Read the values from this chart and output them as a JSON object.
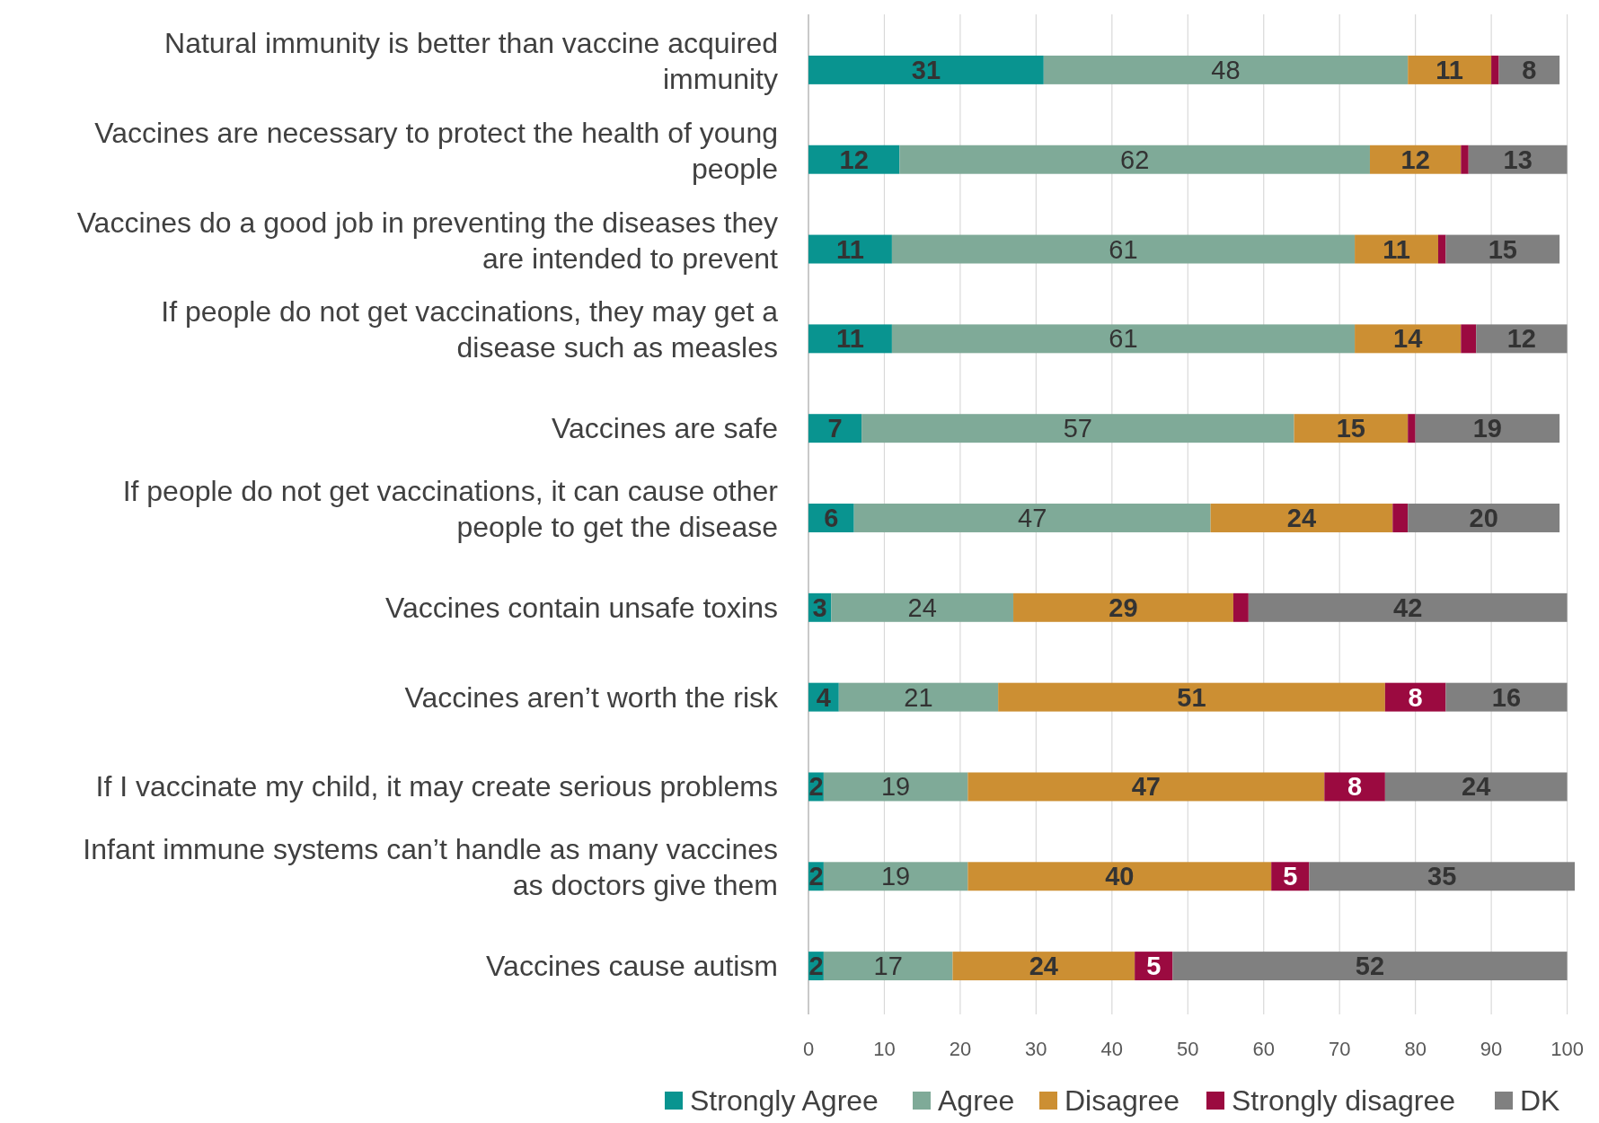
{
  "chart_data": {
    "type": "bar",
    "orientation": "horizontal",
    "stacked": true,
    "categories": [
      "Natural immunity is better than vaccine acquired immunity",
      "Vaccines are necessary to protect the health of young people",
      "Vaccines do a good job in preventing the diseases they are intended to prevent",
      "If people do not get vaccinations, they may get a disease such as measles",
      "Vaccines are safe",
      "If people do not get vaccinations, it can cause other people to get the disease",
      "Vaccines contain unsafe toxins",
      "Vaccines aren’t worth the risk",
      "If I vaccinate my child, it may create serious problems",
      "Infant immune systems can’t handle as many vaccines as doctors give them",
      "Vaccines cause autism"
    ],
    "series": [
      {
        "name": "Strongly Agree",
        "color": "#099490",
        "values": [
          31,
          12,
          11,
          11,
          7,
          6,
          3,
          4,
          2,
          2,
          2
        ],
        "value_labels": [
          "31",
          "12",
          "11",
          "11",
          "7",
          "6",
          "3",
          "4",
          "2",
          "2",
          "2"
        ]
      },
      {
        "name": "Agree",
        "color": "#7faa98",
        "values": [
          48,
          62,
          61,
          61,
          57,
          47,
          24,
          21,
          19,
          19,
          17
        ],
        "value_labels": [
          "48",
          "62",
          "61",
          "61",
          "57",
          "47",
          "24",
          "21",
          "19",
          "19",
          "17"
        ]
      },
      {
        "name": "Disagree",
        "color": "#cc8f33",
        "values": [
          11,
          12,
          11,
          14,
          15,
          24,
          29,
          51,
          47,
          40,
          24
        ],
        "value_labels": [
          "11",
          "12",
          "11",
          "14",
          "15",
          "24",
          "29",
          "51",
          "47",
          "40",
          "24"
        ]
      },
      {
        "name": "Strongly disagree",
        "color": "#9b0a40",
        "values": [
          1,
          1,
          1,
          2,
          1,
          2,
          2,
          8,
          8,
          5,
          5
        ],
        "value_labels": [
          null,
          null,
          null,
          null,
          null,
          null,
          null,
          "8",
          "8",
          "5",
          "5"
        ]
      },
      {
        "name": "DK",
        "color": "#808080",
        "values": [
          8,
          13,
          15,
          12,
          19,
          20,
          42,
          16,
          24,
          35,
          52
        ],
        "value_labels": [
          "8",
          "13",
          "15",
          "12",
          "19",
          "20",
          "42",
          "16",
          "24",
          "35",
          "52"
        ]
      }
    ],
    "xlim": [
      0,
      101
    ],
    "xticks": [
      0,
      10,
      20,
      30,
      40,
      50,
      60,
      70,
      80,
      90,
      100
    ],
    "grid": "x",
    "legend": "bottom"
  }
}
